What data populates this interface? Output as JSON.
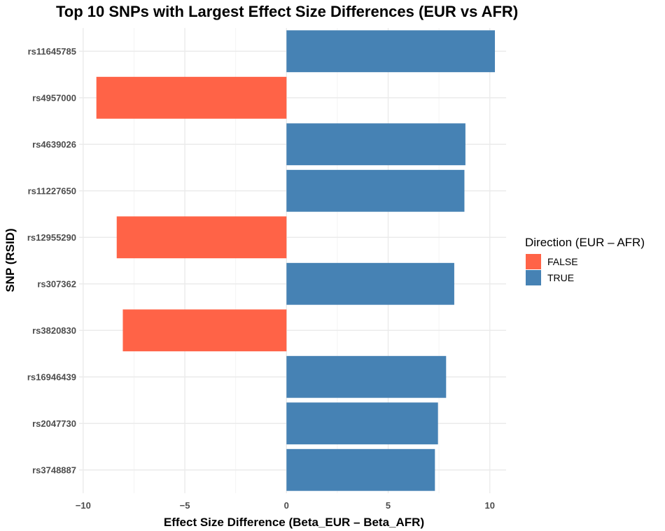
{
  "chart_data": {
    "type": "bar",
    "orientation": "horizontal",
    "title": "Top 10 SNPs with Largest Effect Size Differences (EUR vs AFR)",
    "xlabel": "Effect Size Difference (Beta_EUR – Beta_AFR)",
    "ylabel": "SNP (RSID)",
    "xlim": [
      -10.2,
      10.8
    ],
    "xticks": [
      -10,
      -5,
      0,
      5,
      10
    ],
    "xtick_labels": [
      "−10",
      "−5",
      "0",
      "5",
      "10"
    ],
    "grid": true,
    "categories": [
      "rs11645785",
      "rs4957000",
      "rs4639026",
      "rs11227650",
      "rs12955290",
      "rs307362",
      "rs3820830",
      "rs16946439",
      "rs2047730",
      "rs3748887"
    ],
    "values": [
      10.25,
      -9.35,
      8.8,
      8.75,
      -8.35,
      8.25,
      -8.05,
      7.85,
      7.45,
      7.3
    ],
    "direction": [
      "TRUE",
      "FALSE",
      "TRUE",
      "TRUE",
      "FALSE",
      "TRUE",
      "FALSE",
      "TRUE",
      "TRUE",
      "TRUE"
    ],
    "legend": {
      "title": "Direction (EUR – AFR)",
      "position": "right",
      "entries": [
        {
          "label": "FALSE",
          "color": "#ff6347"
        },
        {
          "label": "TRUE",
          "color": "#4682b4"
        }
      ]
    }
  }
}
